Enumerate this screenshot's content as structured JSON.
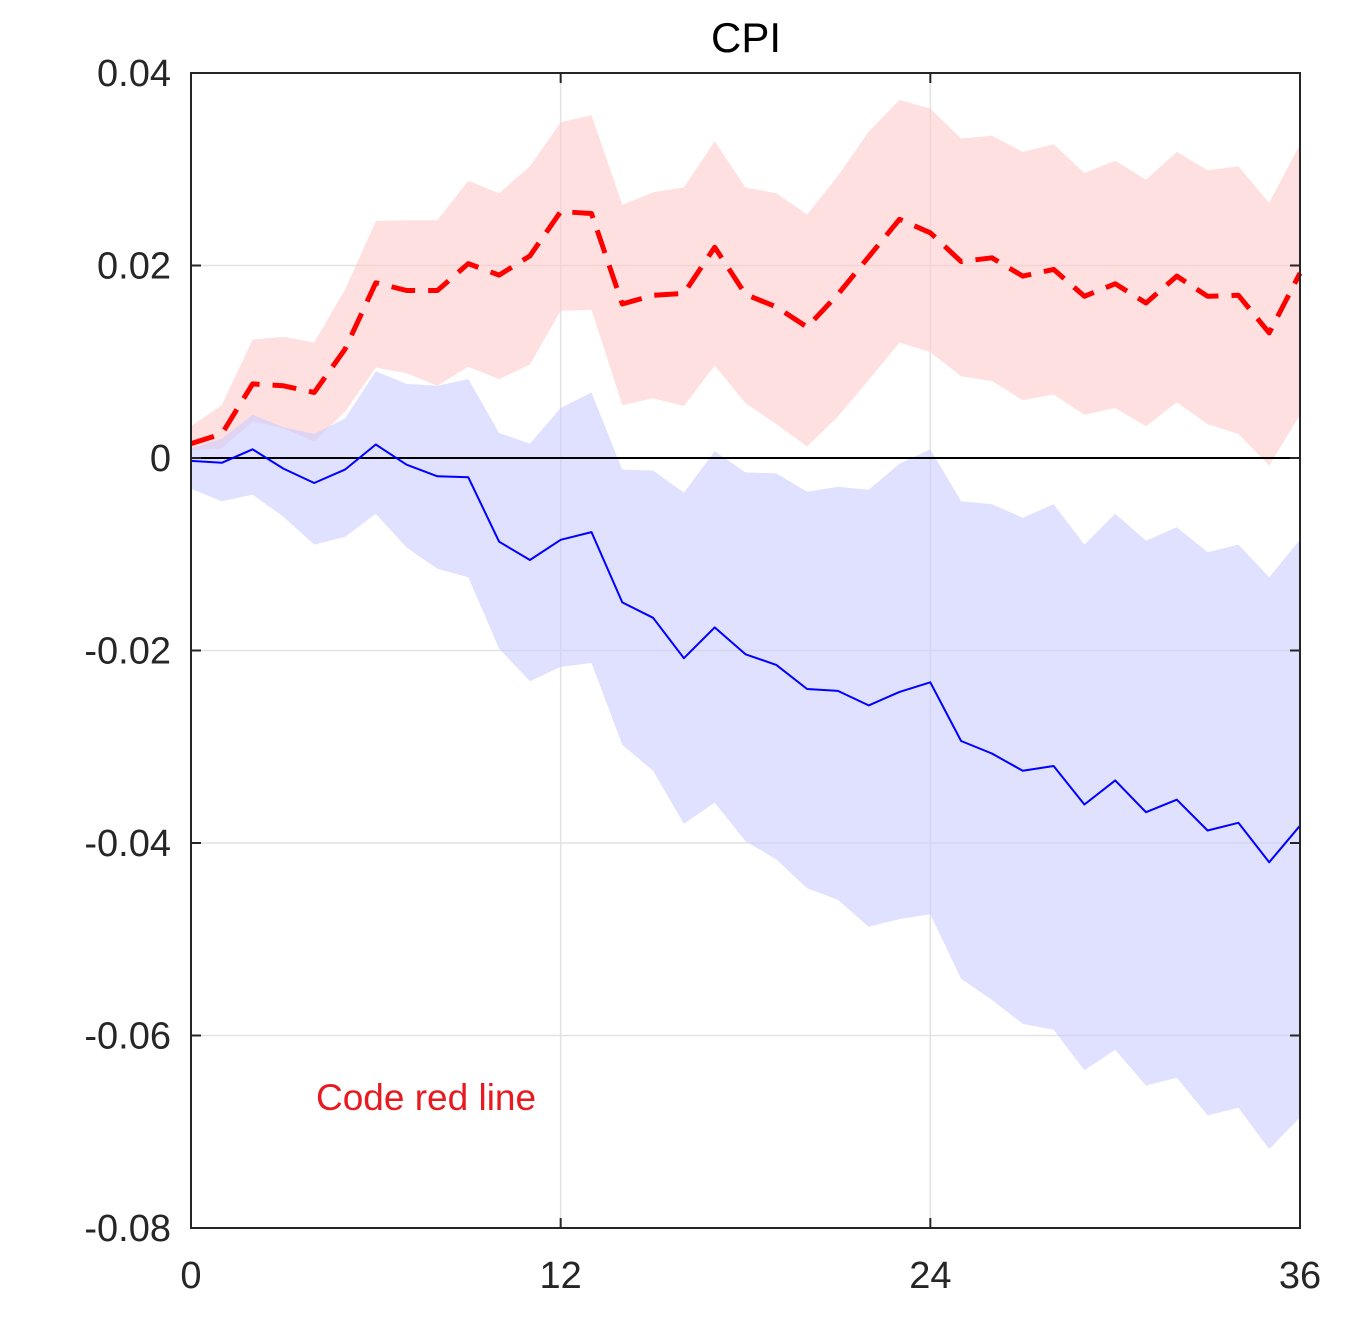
{
  "chart_data": {
    "type": "line",
    "title": "CPI",
    "xlabel": "",
    "ylabel": "",
    "xlim": [
      0,
      36
    ],
    "ylim": [
      -0.08,
      0.04
    ],
    "xticks": [
      0,
      12,
      24,
      36
    ],
    "xtick_labels": [
      "0",
      "12",
      "24",
      "36"
    ],
    "yticks": [
      0.04,
      0.02,
      0,
      -0.02,
      -0.04,
      -0.06,
      -0.08
    ],
    "ytick_labels": [
      "0.04",
      "0.02",
      "0",
      "-0.02",
      "-0.04",
      "-0.06",
      "-0.08"
    ],
    "grid": true,
    "zero_line": true,
    "annotation": {
      "text": "Code red line",
      "color": "#e8191f"
    },
    "x": [
      0,
      1,
      2,
      3,
      4,
      5,
      6,
      7,
      8,
      9,
      10,
      11,
      12,
      13,
      14,
      15,
      16,
      17,
      18,
      19,
      20,
      21,
      22,
      23,
      24,
      25,
      26,
      27,
      28,
      29,
      30,
      31,
      32,
      33,
      34,
      35,
      36
    ],
    "series": [
      {
        "style": "dashed",
        "color": "#ff0000",
        "band_color": "#ffcccc",
        "values": [
          0.0015,
          0.0025,
          0.0077,
          0.0075,
          0.0068,
          0.0113,
          0.0182,
          0.0174,
          0.0174,
          0.0202,
          0.019,
          0.021,
          0.0256,
          0.0254,
          0.016,
          0.0169,
          0.0171,
          0.0219,
          0.017,
          0.0157,
          0.0136,
          0.017,
          0.0209,
          0.0248,
          0.0234,
          0.0204,
          0.0208,
          0.0189,
          0.0196,
          0.0168,
          0.0181,
          0.0161,
          0.0189,
          0.0168,
          0.0169,
          0.013,
          0.0192
        ],
        "lower": [
          0.0008,
          0.001,
          0.0038,
          0.0031,
          0.0017,
          0.0048,
          0.0094,
          0.0088,
          0.0075,
          0.0095,
          0.0082,
          0.0097,
          0.0153,
          0.0154,
          0.0055,
          0.0062,
          0.0054,
          0.0096,
          0.0057,
          0.0035,
          0.0012,
          0.0043,
          0.0081,
          0.012,
          0.011,
          0.0085,
          0.008,
          0.006,
          0.0066,
          0.0045,
          0.0052,
          0.0033,
          0.0058,
          0.0035,
          0.0025,
          -0.0008,
          0.0045
        ],
        "upper": [
          0.0033,
          0.0055,
          0.0123,
          0.0126,
          0.012,
          0.0175,
          0.0246,
          0.0247,
          0.0247,
          0.0288,
          0.0275,
          0.0303,
          0.0349,
          0.0356,
          0.0263,
          0.0276,
          0.0281,
          0.0329,
          0.0281,
          0.0275,
          0.0253,
          0.0293,
          0.0339,
          0.0372,
          0.0363,
          0.0332,
          0.0335,
          0.0318,
          0.0326,
          0.0296,
          0.0309,
          0.0289,
          0.0318,
          0.0299,
          0.0303,
          0.0265,
          0.0326
        ]
      },
      {
        "style": "solid",
        "color": "#0000ff",
        "band_color": "#ccccff",
        "values": [
          -0.0003,
          -0.0005,
          0.0009,
          -0.0011,
          -0.0026,
          -0.0012,
          0.0014,
          -0.0007,
          -0.0019,
          -0.002,
          -0.0087,
          -0.0106,
          -0.0085,
          -0.0077,
          -0.015,
          -0.0166,
          -0.0208,
          -0.0176,
          -0.0204,
          -0.0215,
          -0.024,
          -0.0242,
          -0.0257,
          -0.0243,
          -0.0233,
          -0.0294,
          -0.0307,
          -0.0325,
          -0.032,
          -0.036,
          -0.0335,
          -0.0368,
          -0.0355,
          -0.0387,
          -0.0379,
          -0.042,
          -0.0382
        ],
        "lower": [
          -0.0032,
          -0.0045,
          -0.0038,
          -0.0061,
          -0.009,
          -0.0082,
          -0.0058,
          -0.0093,
          -0.0115,
          -0.0124,
          -0.0198,
          -0.0232,
          -0.0217,
          -0.0213,
          -0.0298,
          -0.0325,
          -0.038,
          -0.0358,
          -0.0398,
          -0.0417,
          -0.0447,
          -0.0459,
          -0.0487,
          -0.0479,
          -0.0474,
          -0.0541,
          -0.0563,
          -0.0588,
          -0.0594,
          -0.0636,
          -0.0615,
          -0.0652,
          -0.0644,
          -0.0683,
          -0.0675,
          -0.0718,
          -0.0685
        ],
        "upper": [
          0.001,
          0.002,
          0.0045,
          0.0032,
          0.0025,
          0.0041,
          0.009,
          0.0077,
          0.0075,
          0.0082,
          0.0026,
          0.0015,
          0.0052,
          0.0068,
          -0.0012,
          -0.0013,
          -0.0036,
          0.0007,
          -0.0015,
          -0.0016,
          -0.0035,
          -0.003,
          -0.0033,
          -0.0006,
          0.0009,
          -0.0045,
          -0.0048,
          -0.0062,
          -0.0048,
          -0.009,
          -0.0058,
          -0.0086,
          -0.0072,
          -0.0098,
          -0.009,
          -0.0124,
          -0.0085
        ]
      }
    ]
  }
}
